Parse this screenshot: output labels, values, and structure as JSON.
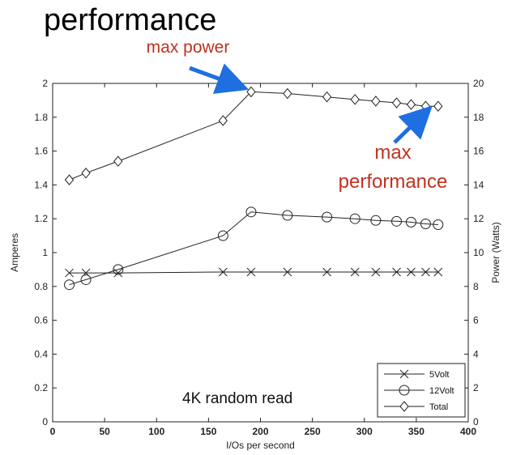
{
  "slide": {
    "title": "performance"
  },
  "chart_data": {
    "type": "line",
    "xlabel": "I/Os per second",
    "ylabel_left": "Amperes",
    "ylabel_right": "Power (Watts)",
    "xlim": [
      0,
      400
    ],
    "ylim_left": [
      0,
      2
    ],
    "ylim_right": [
      0,
      20
    ],
    "x_ticks": [
      "0",
      "50",
      "100",
      "150",
      "200",
      "250",
      "300",
      "350",
      "400"
    ],
    "y_left_ticks": [
      "0",
      "0.2",
      "0.4",
      "0.6",
      "0.8",
      "1",
      "1.2",
      "1.4",
      "1.6",
      "1.8",
      "2"
    ],
    "y_right_ticks": [
      "0",
      "2",
      "4",
      "6",
      "8",
      "10",
      "12",
      "14",
      "16",
      "18",
      "20"
    ],
    "grid": false,
    "legend_position": "bottom-right",
    "annotation_text": "4K random read",
    "series": [
      {
        "name": "5Volt",
        "marker": "x",
        "x": [
          16,
          32,
          63,
          164,
          191,
          226,
          264,
          291,
          311,
          331,
          345,
          359,
          371
        ],
        "values": [
          0.88,
          0.88,
          0.88,
          0.885,
          0.885,
          0.885,
          0.885,
          0.885,
          0.885,
          0.885,
          0.885,
          0.885,
          0.885
        ]
      },
      {
        "name": "12Volt",
        "marker": "circle",
        "x": [
          16,
          32,
          63,
          164,
          191,
          226,
          264,
          291,
          311,
          331,
          345,
          359,
          371
        ],
        "values": [
          0.81,
          0.84,
          0.9,
          1.1,
          1.24,
          1.22,
          1.21,
          1.2,
          1.19,
          1.185,
          1.18,
          1.17,
          1.165
        ]
      },
      {
        "name": "Total",
        "marker": "diamond",
        "x": [
          16,
          32,
          63,
          164,
          191,
          226,
          264,
          291,
          311,
          331,
          345,
          359,
          371
        ],
        "values": [
          1.43,
          1.47,
          1.54,
          1.78,
          1.95,
          1.94,
          1.92,
          1.905,
          1.895,
          1.885,
          1.875,
          1.865,
          1.865
        ]
      }
    ],
    "callouts": [
      {
        "label": "max power",
        "x": 191,
        "y": 1.95
      },
      {
        "label_line1": "max",
        "label_line2": "performance",
        "x": 371,
        "y": 1.865
      }
    ]
  },
  "colors": {
    "annotation": "#c0321e",
    "arrow": "#1f6fe0",
    "line": "#222222"
  }
}
